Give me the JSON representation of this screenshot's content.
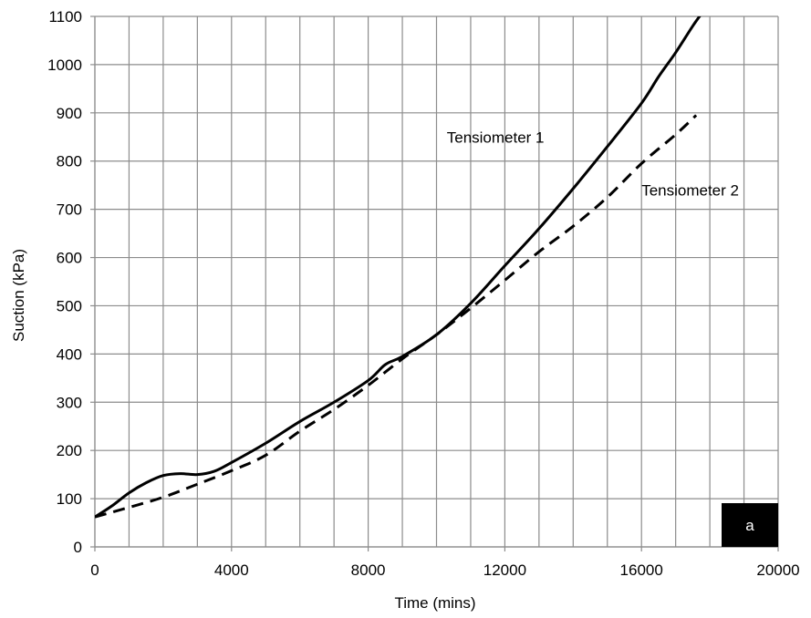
{
  "chart_data": {
    "type": "line",
    "xlabel": "Time (mins)",
    "ylabel": "Suction (kPa)",
    "xlim": [
      0,
      20000
    ],
    "ylim": [
      0,
      1100
    ],
    "x_major_ticks": [
      0,
      4000,
      8000,
      12000,
      16000,
      20000
    ],
    "x_tick_labels": [
      "0",
      "4000",
      "8000",
      "12000",
      "16000",
      "20000"
    ],
    "x_gridlines": [
      0,
      1000,
      2000,
      3000,
      4000,
      5000,
      6000,
      7000,
      8000,
      9000,
      10000,
      11000,
      12000,
      13000,
      14000,
      15000,
      16000,
      17000,
      18000,
      19000,
      20000
    ],
    "y_ticks": [
      0,
      100,
      200,
      300,
      400,
      500,
      600,
      700,
      800,
      900,
      1000,
      1100
    ],
    "y_tick_labels": [
      "0",
      "100",
      "200",
      "300",
      "400",
      "500",
      "600",
      "700",
      "800",
      "900",
      "1000",
      "1100"
    ],
    "grid": true,
    "legend": "none",
    "series": [
      {
        "name": "Tensiometer 1",
        "style": "solid",
        "color": "#000000",
        "x": [
          0,
          500,
          1000,
          1500,
          2000,
          2500,
          3000,
          3500,
          4000,
          5000,
          6000,
          7000,
          8000,
          8500,
          9000,
          10000,
          11000,
          12000,
          13000,
          14000,
          15000,
          16000,
          16500,
          17000,
          17500,
          17800
        ],
        "y": [
          62,
          85,
          112,
          133,
          148,
          152,
          150,
          157,
          175,
          215,
          260,
          300,
          345,
          378,
          395,
          440,
          505,
          583,
          660,
          743,
          830,
          920,
          975,
          1025,
          1080,
          1110
        ]
      },
      {
        "name": "Tensiometer 2",
        "style": "dashed",
        "color": "#000000",
        "x": [
          0,
          1000,
          2000,
          3000,
          4000,
          5000,
          6000,
          7000,
          8000,
          9000,
          10000,
          11000,
          12000,
          13000,
          14000,
          15000,
          16000,
          17000,
          17600
        ],
        "y": [
          62,
          82,
          103,
          130,
          158,
          190,
          240,
          285,
          335,
          390,
          440,
          495,
          553,
          612,
          665,
          725,
          795,
          855,
          895
        ]
      }
    ],
    "annotations": [
      {
        "text": "Tensiometer 1",
        "x": 10300,
        "y": 850
      },
      {
        "text": "Tensiometer 2",
        "x": 16000,
        "y": 740
      }
    ],
    "panel_label": "a",
    "panel_label_bg": "#000000",
    "panel_label_color": "#ffffff"
  }
}
